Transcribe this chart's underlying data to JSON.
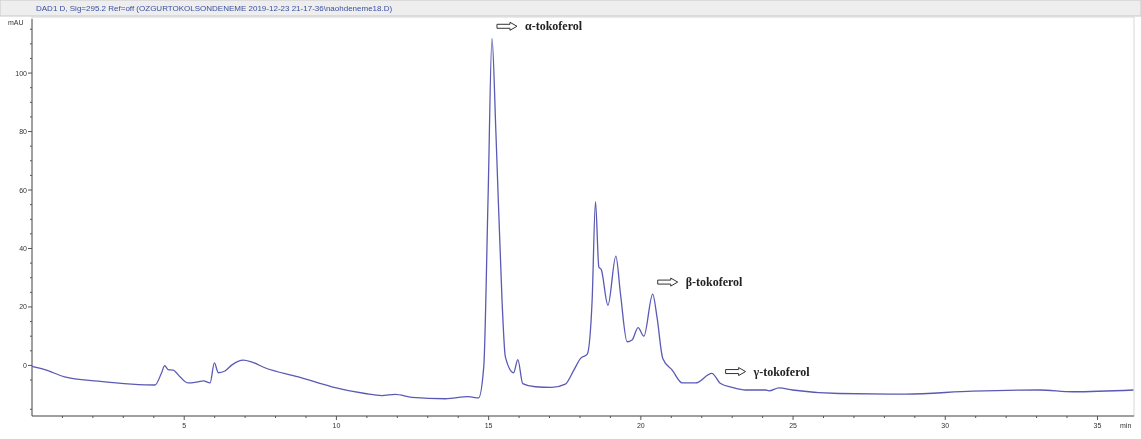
{
  "chart_data": {
    "type": "line",
    "title": "DAD1 D, Sig=295.2 Ref=off (OZGURTOKOLSONDENEME 2019-12-23 21-17-36\\naohdeneme18.D)",
    "xlabel": "min",
    "ylabel": "mAU",
    "xlim": [
      0,
      36.2
    ],
    "ylim": [
      -17.3,
      118.5
    ],
    "xticks": [
      {
        "value": 1,
        "label": null
      },
      {
        "value": 2,
        "label": null
      },
      {
        "value": 3,
        "label": null
      },
      {
        "value": 4,
        "label": null
      },
      5,
      {
        "value": 6,
        "label": null
      },
      {
        "value": 7,
        "label": null
      },
      {
        "value": 8,
        "label": null
      },
      {
        "value": 9,
        "label": null
      },
      10,
      {
        "value": 11,
        "label": null
      },
      {
        "value": 12,
        "label": null
      },
      {
        "value": 13,
        "label": null
      },
      {
        "value": 14,
        "label": null
      },
      15,
      {
        "value": 16,
        "label": null
      },
      {
        "value": 17,
        "label": null
      },
      {
        "value": 18,
        "label": null
      },
      {
        "value": 19,
        "label": null
      },
      20,
      {
        "value": 21,
        "label": null
      },
      {
        "value": 22,
        "label": null
      },
      {
        "value": 23,
        "label": null
      },
      {
        "value": 24,
        "label": null
      },
      25,
      {
        "value": 26,
        "label": null
      },
      {
        "value": 27,
        "label": null
      },
      {
        "value": 28,
        "label": null
      },
      {
        "value": 29,
        "label": null
      },
      30,
      {
        "value": 31,
        "label": null
      },
      {
        "value": 32,
        "label": null
      },
      {
        "value": 33,
        "label": null
      },
      {
        "value": 34,
        "label": null
      },
      35
    ],
    "yticks": [
      {
        "value": -15,
        "label": null
      },
      {
        "value": -5,
        "label": null
      },
      0,
      {
        "value": 5,
        "label": null
      },
      {
        "value": 10,
        "label": null
      },
      {
        "value": 15,
        "label": null
      },
      20,
      {
        "value": 25,
        "label": null
      },
      {
        "value": 30,
        "label": null
      },
      {
        "value": 35,
        "label": null
      },
      40,
      {
        "value": 45,
        "label": null
      },
      {
        "value": 50,
        "label": null
      },
      {
        "value": 55,
        "label": null
      },
      60,
      {
        "value": 65,
        "label": null
      },
      {
        "value": 70,
        "label": null
      },
      {
        "value": 75,
        "label": null
      },
      80,
      {
        "value": 85,
        "label": null
      },
      {
        "value": 90,
        "label": null
      },
      {
        "value": 95,
        "label": null
      },
      100,
      {
        "value": 105,
        "label": null
      },
      {
        "value": 110,
        "label": null
      },
      {
        "value": 115,
        "label": null
      }
    ],
    "grid": false,
    "marker": "none",
    "line_style": "solid",
    "series": [
      {
        "color": "#5a5ab4",
        "x": [
          0,
          0.42,
          1.07,
          2.17,
          3.27,
          4.04,
          4.25,
          4.36,
          4.47,
          4.64,
          4.86,
          5.13,
          5.46,
          5.63,
          5.85,
          5.99,
          6.12,
          6.34,
          6.56,
          6.94,
          7.21,
          7.65,
          8.75,
          9.85,
          10.94,
          11.49,
          11.93,
          12.48,
          13.58,
          14.34,
          14.67,
          14.84,
          14.98,
          15.11,
          15.24,
          15.44,
          15.55,
          15.82,
          15.96,
          16.12,
          16.53,
          17.08,
          17.52,
          17.8,
          18.02,
          18.24,
          18.4,
          18.51,
          18.62,
          18.7,
          18.92,
          19.18,
          19.33,
          19.55,
          19.71,
          19.91,
          20.1,
          20.39,
          20.53,
          20.72,
          21.03,
          21.36,
          21.8,
          22.33,
          22.62,
          23,
          23.44,
          24.1,
          24.21,
          24.54,
          24.98,
          26.51,
          28.71,
          30.9,
          33.09,
          34.19,
          36.18
        ],
        "values": [
          -0.3,
          -1.4,
          -3.9,
          -5.4,
          -6.4,
          -6.7,
          -2.7,
          -0.1,
          -1.4,
          -1.6,
          -3.9,
          -6,
          -5.6,
          -5.3,
          -6,
          0.9,
          -2.5,
          -1.9,
          0.1,
          1.8,
          1.2,
          -0.8,
          -3.9,
          -7.3,
          -9.6,
          -10.3,
          -9.9,
          -10.9,
          -11.4,
          -10.7,
          -11.1,
          -0.5,
          56.6,
          111.9,
          79.4,
          22.3,
          2.9,
          -2.5,
          2,
          -6.2,
          -7.3,
          -7.5,
          -6.4,
          -1.6,
          2.4,
          3.9,
          22.3,
          56,
          33.7,
          32.8,
          20.6,
          37.4,
          24.6,
          8.1,
          8.7,
          12.9,
          10,
          24.4,
          16.6,
          2.4,
          -1.6,
          -6,
          -6,
          -2.7,
          -6.2,
          -7.5,
          -8.4,
          -8.4,
          -8.7,
          -7.7,
          -8.4,
          -9.6,
          -9.8,
          -8.8,
          -8.4,
          -9,
          -8.4
        ]
      }
    ],
    "annotations": [
      {
        "text": "α-tokoferol",
        "x": 15.11,
        "y": 111.9
      },
      {
        "text": "β-tokoferol",
        "x": 20.39,
        "y": 24.4
      },
      {
        "text": "γ-tokoferol",
        "x": 22.62,
        "y": -6.2
      }
    ]
  }
}
